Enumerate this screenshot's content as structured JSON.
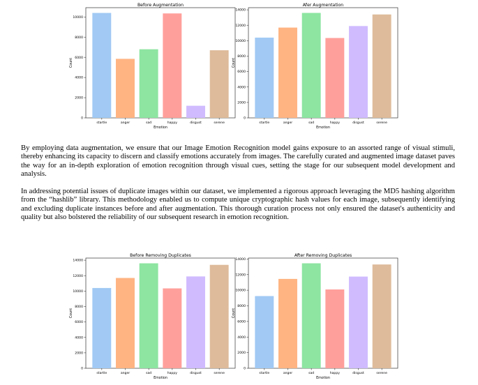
{
  "colors": {
    "startle": "#a1c9f4",
    "anger": "#ffb482",
    "sad": "#8de5a1",
    "happy": "#ff9f9b",
    "disgust": "#d0bbff",
    "serene": "#debb9b"
  },
  "paragraphs": [
    "By employing data augmentation, we ensure that our Image Emotion Recognition model gains exposure to an assorted range of visual stimuli, thereby enhancing its capacity to discern and classify emotions accurately from images. The carefully curated and augmented image dataset paves the way for an in-depth exploration of emotion recognition through visual cues, setting the stage for our subsequent model development and analysis.",
    "In addressing potential issues of duplicate images within our dataset, we implemented a rigorous approach leveraging the MD5 hashing algorithm from the “hashlib” library. This methodology enabled us to compute unique cryptographic hash values for each image, subsequently identifying and excluding duplicate instances before and after augmentation. This thorough curation process not only ensured the dataset's authenticity and quality but also bolstered the reliability of our subsequent research in emotion recognition."
  ],
  "chart_data": [
    {
      "type": "bar",
      "title": "Before Augmentation",
      "xlabel": "Emotion",
      "ylabel": "Count",
      "categories": [
        "startle",
        "anger",
        "sad",
        "happy",
        "disgust",
        "serene"
      ],
      "values": [
        10400,
        5850,
        6800,
        10350,
        1200,
        6700
      ],
      "ylim": [
        0,
        10920
      ],
      "yticks": [
        0,
        2000,
        4000,
        6000,
        8000,
        10000
      ]
    },
    {
      "type": "bar",
      "title": "Afer Augmentation",
      "xlabel": "Emotion",
      "ylabel": "Count",
      "categories": [
        "startle",
        "anger",
        "sad",
        "happy",
        "disgust",
        "serene"
      ],
      "values": [
        10400,
        11700,
        13600,
        10350,
        11900,
        13400
      ],
      "ylim": [
        0,
        14280
      ],
      "yticks": [
        0,
        2000,
        4000,
        6000,
        8000,
        10000,
        12000,
        14000
      ]
    },
    {
      "type": "bar",
      "title": "Before Removing Duplicates",
      "xlabel": "Emotion",
      "ylabel": "Count",
      "categories": [
        "startle",
        "anger",
        "sad",
        "happy",
        "disgust",
        "serene"
      ],
      "values": [
        10400,
        11700,
        13600,
        10350,
        11900,
        13400
      ],
      "ylim": [
        0,
        14280
      ],
      "yticks": [
        0,
        2000,
        4000,
        6000,
        8000,
        10000,
        12000,
        14000
      ]
    },
    {
      "type": "bar",
      "title": "After Removing Duplicates",
      "xlabel": "Emotion",
      "ylabel": "Count",
      "categories": [
        "startle",
        "anger",
        "sad",
        "happy",
        "disgust",
        "serene"
      ],
      "values": [
        9250,
        11450,
        13450,
        10100,
        11750,
        13300
      ],
      "ylim": [
        0,
        14122
      ],
      "yticks": [
        0,
        2000,
        4000,
        6000,
        8000,
        10000,
        12000,
        14000
      ]
    }
  ]
}
